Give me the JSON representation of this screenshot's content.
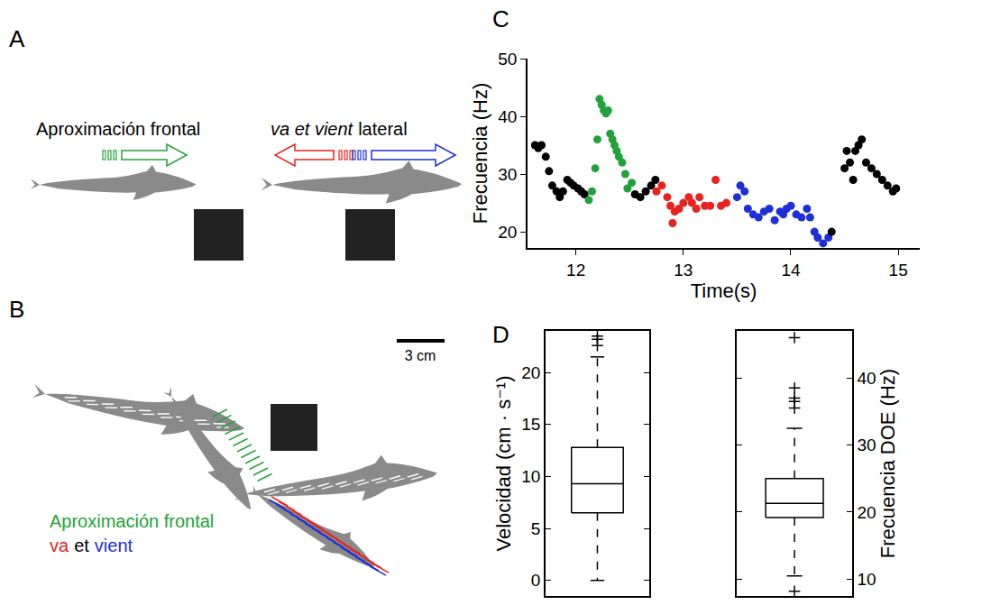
{
  "panels": {
    "A": {
      "letter": "A",
      "frontal_label": "Aproximación frontal",
      "lateral_label": [
        "va et vient",
        "lateral"
      ]
    },
    "B": {
      "letter": "B",
      "scale_label": "3 cm",
      "caption_lines": [
        [
          {
            "text": "Aproximación frontal",
            "color": "#22a33a"
          }
        ],
        [
          {
            "text": "va",
            "color": "#e8221f"
          },
          {
            "text": "et",
            "color": "#000000"
          },
          {
            "text": "vient",
            "color": "#1c2fd8"
          }
        ]
      ]
    }
  },
  "chart_data": [
    {
      "panel": "C",
      "type": "scatter",
      "marker": "circle",
      "grid": false,
      "x_label": "Time(s)",
      "y_label": "Frecuencia (Hz)",
      "xlim": [
        11.55,
        15.2
      ],
      "xticks": [
        12,
        13,
        14,
        15
      ],
      "ylim": [
        17.2,
        50
      ],
      "yticks": [
        20,
        30,
        40,
        50
      ],
      "series": [
        {
          "color": "#000000",
          "x": [
            11.62,
            11.65,
            11.68,
            11.72,
            11.75,
            11.78,
            11.82,
            11.85,
            11.88,
            11.92,
            11.95,
            11.98,
            12.02,
            12.05,
            12.08
          ],
          "values": [
            35,
            34.5,
            35,
            33,
            30.5,
            28,
            27,
            26,
            27,
            29,
            28.5,
            28,
            27.5,
            27,
            26.5
          ]
        },
        {
          "color": "#22a33a",
          "x": [
            12.12,
            12.15,
            12.18,
            12.2,
            12.22,
            12.24,
            12.26,
            12.28,
            12.3,
            12.32,
            12.34,
            12.36,
            12.38,
            12.4,
            12.43,
            12.46,
            12.48,
            12.52
          ],
          "values": [
            25.5,
            27,
            31,
            36,
            43,
            42,
            41,
            40.5,
            41,
            37,
            36,
            35,
            34,
            33,
            32,
            30,
            27.5,
            28.5
          ]
        },
        {
          "color": "#000000",
          "x": [
            12.55,
            12.6,
            12.65,
            12.7,
            12.74
          ],
          "values": [
            26.5,
            26,
            27,
            28,
            29
          ]
        },
        {
          "color": "#e8221f",
          "x": [
            12.75,
            12.8,
            12.85,
            12.88,
            12.9,
            12.92,
            12.96,
            13.0,
            13.05,
            13.08,
            13.12,
            13.15,
            13.2,
            13.25,
            13.3,
            13.35,
            13.4
          ],
          "values": [
            27,
            28,
            26,
            24.5,
            21.5,
            23.5,
            24,
            25,
            26,
            25,
            24,
            26,
            24.5,
            24.5,
            29,
            24.5,
            25
          ]
        },
        {
          "color": "#1c2fd8",
          "x": [
            13.5,
            13.53,
            13.57,
            13.6,
            13.65,
            13.7,
            13.75,
            13.8,
            13.85,
            13.9,
            13.93,
            13.96,
            14.0,
            14.05,
            14.1,
            14.15,
            14.18,
            14.22,
            14.25,
            14.3,
            14.35
          ],
          "values": [
            26,
            28,
            27,
            24,
            23,
            22.5,
            23.5,
            24,
            22,
            23.5,
            23,
            24,
            24.5,
            23,
            22.5,
            24,
            22.5,
            20,
            19,
            18,
            19
          ]
        },
        {
          "color": "#000000",
          "x": [
            14.38,
            14.5,
            14.52,
            14.55,
            14.58,
            14.6,
            14.63,
            14.66,
            14.7,
            14.75,
            14.8,
            14.85,
            14.9,
            14.95,
            14.98
          ],
          "values": [
            20,
            31,
            34,
            32,
            29,
            34,
            35,
            36,
            32,
            31,
            30,
            29,
            28,
            27,
            27.5
          ]
        }
      ]
    },
    {
      "panel": "D",
      "type": "box",
      "color": "#000000",
      "marker": "cross",
      "line_style": "dashed",
      "grid": false,
      "tick_labels": "y",
      "y_label": "Velocidad (cm · s⁻¹)",
      "ylim": [
        -1.5,
        24
      ],
      "yticks": [
        0,
        5,
        10,
        15,
        20
      ],
      "q1": 6.5,
      "median": 9.3,
      "q3": 12.8,
      "lower_whisker": 0,
      "upper_whisker": 21.5,
      "outliers": [
        22.6,
        23.2,
        23.5
      ]
    },
    {
      "type": "box",
      "color": "#000000",
      "marker": "cross",
      "line_style": "dashed",
      "grid": false,
      "tick_labels": "y",
      "y_label": "Frecuencia DOE (Hz)",
      "ylim": [
        7.5,
        47
      ],
      "yticks": [
        10,
        20,
        30,
        40
      ],
      "q1": 19.2,
      "median": 21.3,
      "q3": 25,
      "lower_whisker": 10.5,
      "upper_whisker": 32.5,
      "outliers": [
        8.2,
        35.5,
        36.5,
        37,
        38.5,
        46
      ]
    }
  ]
}
